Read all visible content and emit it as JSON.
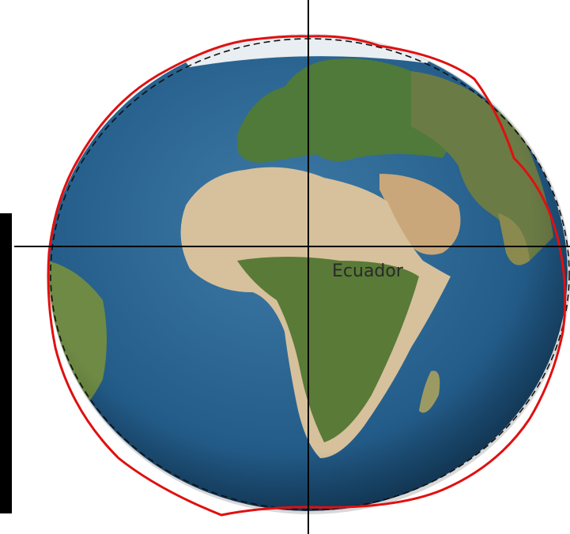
{
  "label": "Ecuador"
}
